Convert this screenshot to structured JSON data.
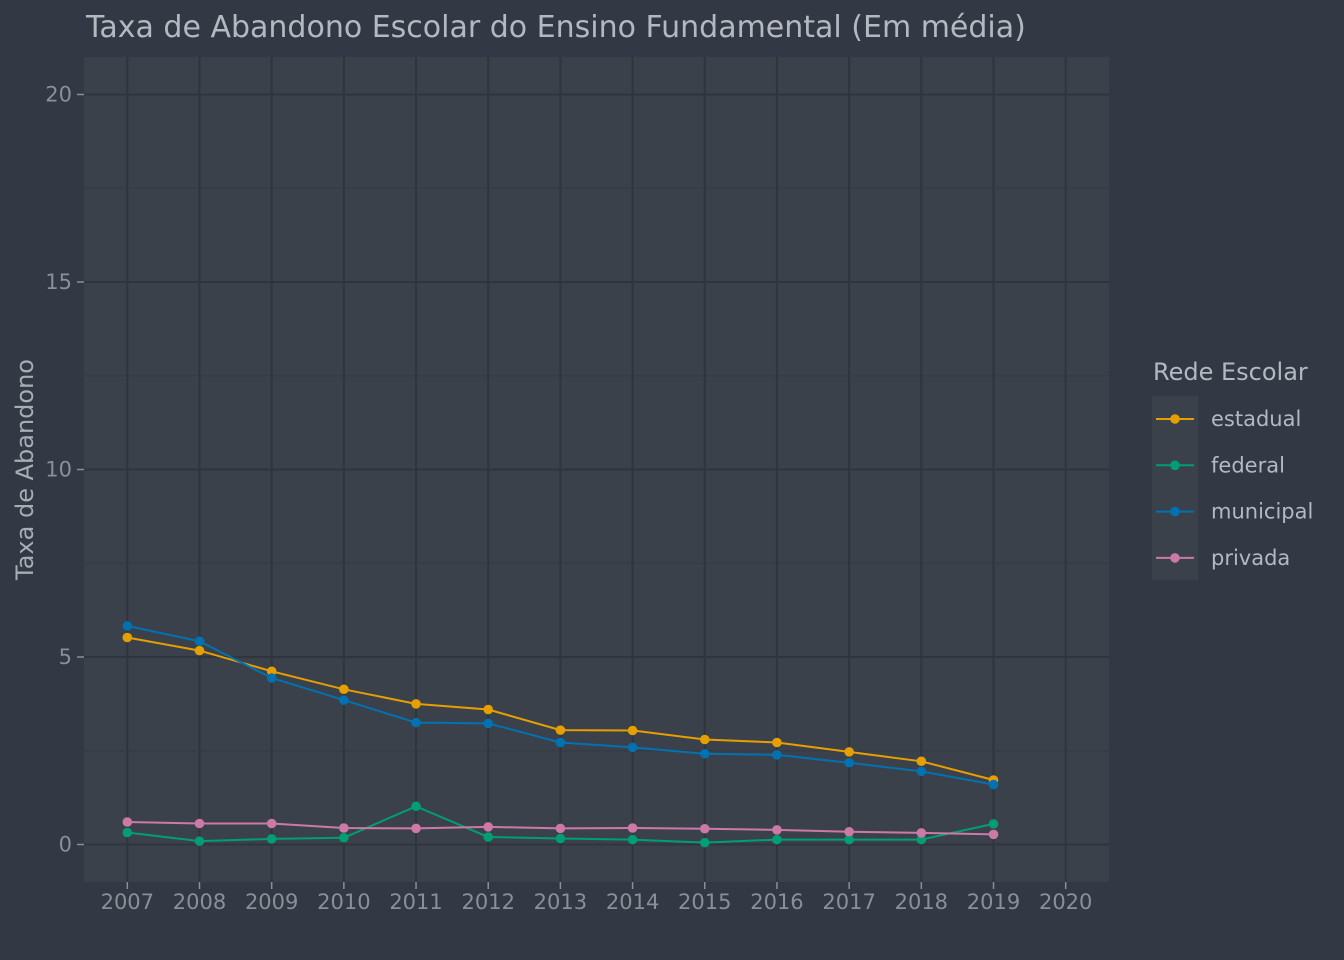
{
  "chart_data": {
    "type": "line",
    "title": "Taxa de Abandono Escolar do Ensino Fundamental (Em média)",
    "xlabel": "",
    "ylabel": "Taxa de Abandono",
    "xlim": [
      2006.4,
      2020.6
    ],
    "ylim": [
      -1,
      21
    ],
    "x_ticks": [
      2007,
      2008,
      2009,
      2010,
      2011,
      2012,
      2013,
      2014,
      2015,
      2016,
      2017,
      2018,
      2019,
      2020
    ],
    "y_ticks": [
      0,
      5,
      10,
      15,
      20
    ],
    "grid": true,
    "legend": {
      "title": "Rede Escolar",
      "position": "right"
    },
    "x": [
      2007,
      2008,
      2009,
      2010,
      2011,
      2012,
      2013,
      2014,
      2015,
      2016,
      2017,
      2018,
      2019
    ],
    "series": [
      {
        "name": "estadual",
        "color": "#e69f00",
        "values": [
          5.52,
          5.17,
          4.62,
          4.14,
          3.75,
          3.6,
          3.05,
          3.04,
          2.8,
          2.72,
          2.47,
          2.22,
          1.72
        ]
      },
      {
        "name": "federal",
        "color": "#009e73",
        "values": [
          0.32,
          0.09,
          0.15,
          0.18,
          1.02,
          0.2,
          0.16,
          0.13,
          0.05,
          0.13,
          0.13,
          0.13,
          0.55
        ]
      },
      {
        "name": "municipal",
        "color": "#0072b2",
        "values": [
          5.83,
          5.42,
          4.44,
          3.85,
          3.25,
          3.23,
          2.72,
          2.59,
          2.42,
          2.39,
          2.18,
          1.95,
          1.6
        ]
      },
      {
        "name": "privada",
        "color": "#cc79a7",
        "values": [
          0.6,
          0.56,
          0.56,
          0.44,
          0.43,
          0.47,
          0.43,
          0.44,
          0.42,
          0.39,
          0.34,
          0.31,
          0.27
        ]
      }
    ]
  }
}
